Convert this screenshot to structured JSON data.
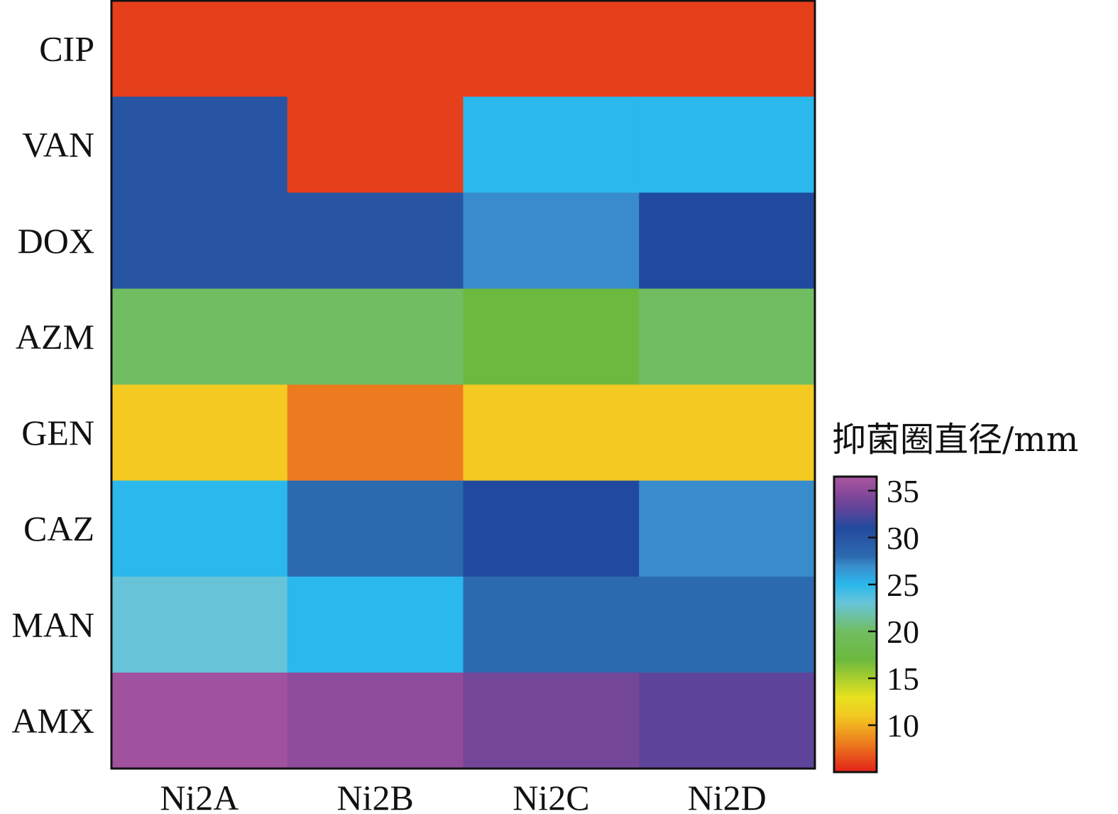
{
  "chart_data": {
    "type": "heatmap",
    "title": "",
    "xlabel": "",
    "ylabel": "",
    "columns": [
      "Ni2A",
      "Ni2B",
      "Ni2C",
      "Ni2D"
    ],
    "rows": [
      "CIP",
      "VAN",
      "DOX",
      "AZM",
      "GEN",
      "CAZ",
      "MAN",
      "AMX"
    ],
    "values": [
      [
        6,
        6,
        6,
        6
      ],
      [
        30,
        6,
        25,
        25
      ],
      [
        30,
        30,
        27,
        31
      ],
      [
        20,
        20,
        17,
        20
      ],
      [
        11,
        8,
        11,
        11
      ],
      [
        25,
        28,
        31,
        27
      ],
      [
        23,
        25,
        28,
        28
      ],
      [
        36,
        35,
        34,
        33
      ]
    ],
    "colorbar": {
      "title": "抑菌圈直径/mm",
      "min": 5,
      "max": 36.5,
      "ticks": [
        10,
        15,
        20,
        25,
        30,
        35
      ],
      "stops": [
        {
          "value": 5,
          "color": "#e3221a"
        },
        {
          "value": 8,
          "color": "#ec7a1e"
        },
        {
          "value": 11,
          "color": "#f3c922"
        },
        {
          "value": 13,
          "color": "#e6e220"
        },
        {
          "value": 17,
          "color": "#6cb93f"
        },
        {
          "value": 20,
          "color": "#71bd62"
        },
        {
          "value": 23,
          "color": "#67c4d8"
        },
        {
          "value": 25,
          "color": "#2bb8ec"
        },
        {
          "value": 27,
          "color": "#398ccb"
        },
        {
          "value": 28,
          "color": "#2c6ab0"
        },
        {
          "value": 30,
          "color": "#2855a3"
        },
        {
          "value": 31,
          "color": "#214a9e"
        },
        {
          "value": 33,
          "color": "#5e449a"
        },
        {
          "value": 34,
          "color": "#744698"
        },
        {
          "value": 35,
          "color": "#8e4b9b"
        },
        {
          "value": 36.5,
          "color": "#a9569f"
        }
      ]
    }
  }
}
